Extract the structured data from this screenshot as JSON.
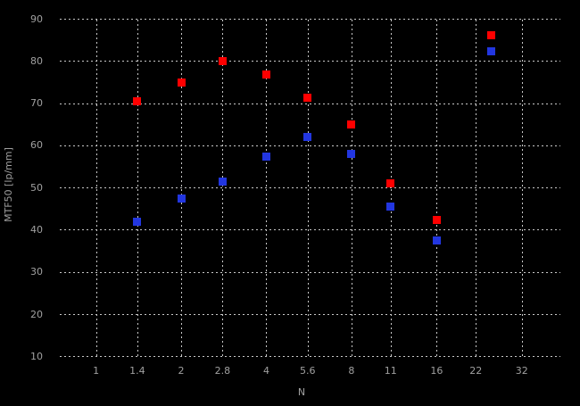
{
  "colors": {
    "background": "#000000",
    "grid": "#c8c8c8",
    "tick_text": "#a0a0a0",
    "red_series": "#ff0000",
    "blue_series": "#2236e0"
  },
  "chart_data": {
    "type": "scatter",
    "title": "",
    "xlabel": "N",
    "ylabel": "MTF50 [lp/mm]",
    "x_scale": "log2",
    "xlim": [
      0.87,
      43
    ],
    "ylim": [
      10,
      90
    ],
    "grid": true,
    "x_ticks": {
      "values": [
        1,
        1.4,
        2,
        2.8,
        4,
        5.6,
        8,
        11,
        16,
        22,
        32
      ],
      "labels": [
        "1",
        "1.4",
        "2",
        "2.8",
        "4",
        "5.6",
        "8",
        "11",
        "16",
        "22",
        "32"
      ]
    },
    "y_ticks": {
      "values": [
        10,
        20,
        30,
        40,
        50,
        60,
        70,
        80,
        90
      ],
      "labels": [
        "10",
        "20",
        "30",
        "40",
        "50",
        "60",
        "70",
        "80",
        "90"
      ]
    },
    "legend": {
      "position": "top-right",
      "labels_visible": false
    },
    "series": [
      {
        "name": "red-series",
        "color": "#ff0000",
        "marker": "square",
        "x": [
          1.4,
          2,
          2.8,
          4,
          5.6,
          8,
          11,
          16
        ],
        "y": [
          70.5,
          75,
          80,
          77,
          71.5,
          65,
          51,
          42.5
        ]
      },
      {
        "name": "blue-series",
        "color": "#2236e0",
        "marker": "square",
        "x": [
          1.4,
          2,
          2.8,
          4,
          5.6,
          8,
          11,
          16
        ],
        "y": [
          42,
          47.5,
          51.5,
          57.5,
          62,
          58,
          45.5,
          37.5
        ]
      }
    ]
  }
}
